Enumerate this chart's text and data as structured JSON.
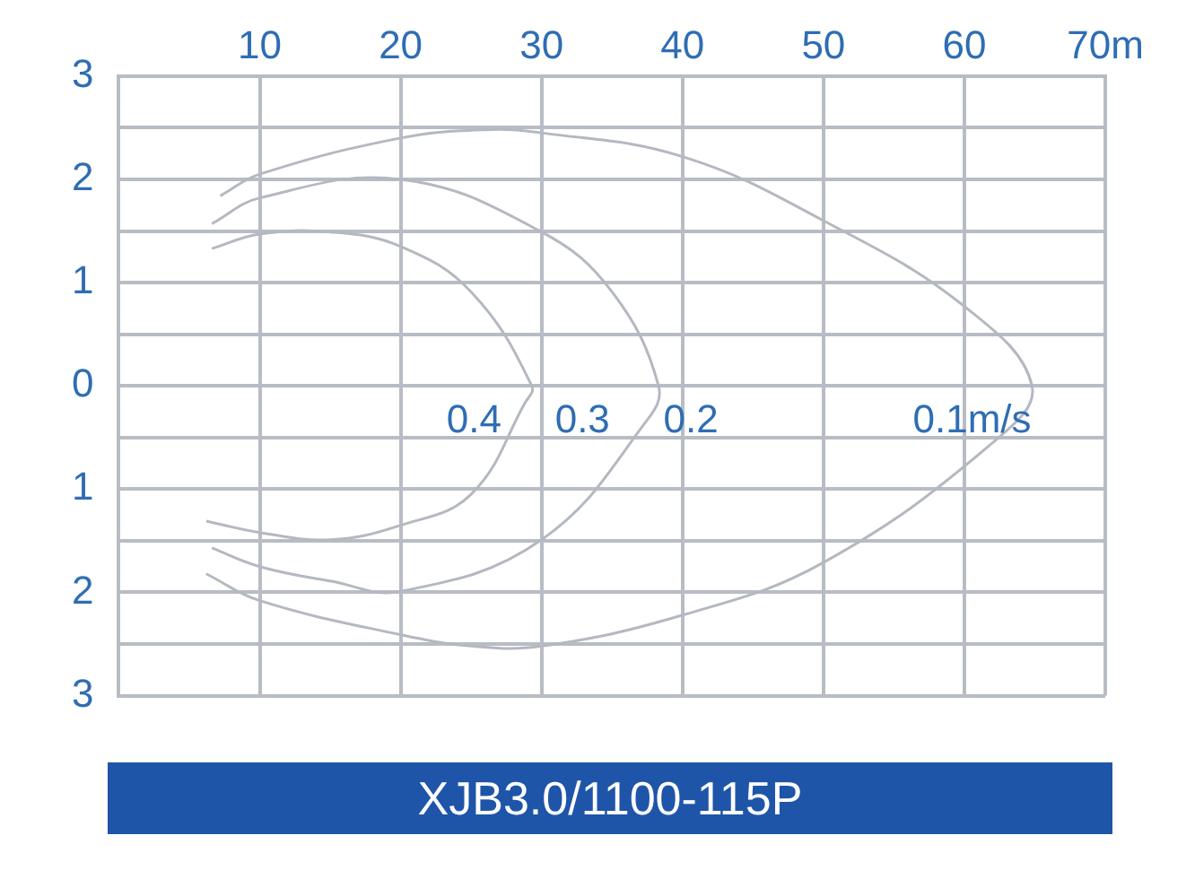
{
  "chart_data": {
    "type": "line",
    "title": "XJB3.0/1100-115P",
    "xlim": [
      0,
      70
    ],
    "xticks": [
      10,
      20,
      30,
      40,
      50,
      60,
      {
        "value": 70,
        "label": "70m"
      }
    ],
    "ylim": [
      -3,
      3
    ],
    "yticks": [
      {
        "value": -3,
        "label": "3"
      },
      {
        "value": -2.5,
        "label": null
      },
      {
        "value": -2,
        "label": "2"
      },
      {
        "value": -1.5,
        "label": null
      },
      {
        "value": -1,
        "label": "1"
      },
      {
        "value": -0.5,
        "label": null
      },
      0,
      {
        "value": 0.5,
        "label": null
      },
      1,
      {
        "value": 1.5,
        "label": null
      },
      2,
      {
        "value": 2.5,
        "label": null
      },
      3
    ],
    "grid": true,
    "marker": "none",
    "line_style": "solid",
    "series": [
      {
        "color": "#b4b8c0",
        "x": [
          7.2,
          10,
          20,
          26,
          30,
          40,
          50,
          60,
          64.8,
          62.1,
          50,
          40,
          30,
          25,
          20,
          10,
          6.2
        ],
        "values": [
          1.84,
          2.05,
          2.4,
          2.48,
          2.45,
          2.22,
          1.6,
          0.77,
          0,
          -0.54,
          -1.71,
          -2.22,
          -2.52,
          -2.52,
          -2.41,
          -2.08,
          -1.82
        ]
      },
      {
        "color": "#b4b8c0",
        "x": [
          6.6,
          10,
          20,
          30,
          35,
          38.3,
          37.5,
          30,
          20,
          15,
          10,
          6.6
        ],
        "values": [
          1.57,
          1.82,
          2.0,
          1.49,
          0.91,
          0,
          -0.33,
          -1.49,
          -1.99,
          -1.89,
          -1.75,
          -1.57
        ]
      },
      {
        "color": "#b4b8c0",
        "x": [
          6.6,
          10,
          15,
          20,
          25,
          29.3,
          28.8,
          25,
          20,
          15,
          10,
          6.2
        ],
        "values": [
          1.33,
          1.47,
          1.49,
          1.35,
          0.91,
          0,
          -0.17,
          -1.05,
          -1.35,
          -1.49,
          -1.42,
          -1.31
        ]
      }
    ],
    "annotations": [
      "0.4",
      "0.3",
      "0.2",
      "0.1m/s"
    ]
  }
}
